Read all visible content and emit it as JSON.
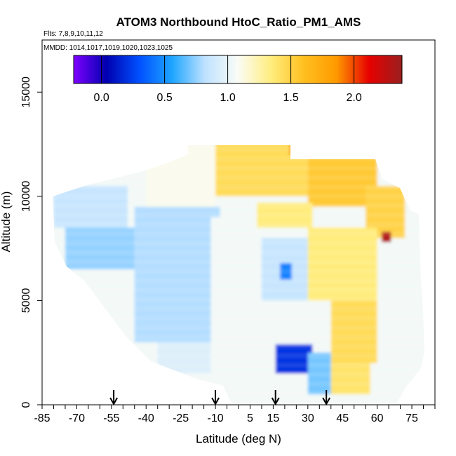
{
  "chart_data": {
    "type": "heatmap",
    "title": "ATOM3 Northbound HtoC_Ratio_PM1_AMS",
    "subtitle_flights": "Flts: 7,8,9,10,11,12",
    "subtitle_dates": "MMDD: 1014,1017,1019,1020,1023,1025",
    "xlabel": "Latitude (deg N)",
    "ylabel": "Altitude (m)",
    "xlim": [
      -85,
      85
    ],
    "ylim": [
      0,
      17500
    ],
    "x_ticks": [
      -85,
      -70,
      -55,
      -40,
      -25,
      -10,
      5,
      15,
      30,
      45,
      60,
      75
    ],
    "x_tick_labels": [
      "-85",
      "-70",
      "-55",
      "-40",
      "-25",
      "-10",
      "5",
      "15",
      "30",
      "45",
      "60",
      "75"
    ],
    "y_ticks": [
      0,
      5000,
      10000,
      15000
    ],
    "y_tick_labels": [
      "0",
      "5000",
      "10000",
      "15000"
    ],
    "colorbar": {
      "range": [
        -0.22,
        2.38
      ],
      "ticks": [
        0.0,
        0.5,
        1.0,
        1.5,
        2.0
      ],
      "tick_labels": [
        "0.0",
        "0.5",
        "1.0",
        "1.5",
        "2.0"
      ],
      "colors": [
        "#7f00ff",
        "#0000b0",
        "#0050ff",
        "#1ea5ff",
        "#bfe2ff",
        "#fafcf6",
        "#ffee80",
        "#ffc020",
        "#ff9a00",
        "#e60000",
        "#9a1f1f"
      ]
    },
    "takeoff_markers_lat": [
      -54,
      -10,
      16,
      38
    ],
    "regions": [
      {
        "lat": [
          -80,
          -48
        ],
        "alt": [
          8500,
          10500
        ],
        "value": 0.85
      },
      {
        "lat": [
          -75,
          -45
        ],
        "alt": [
          6500,
          8500
        ],
        "value": 0.75
      },
      {
        "lat": [
          -45,
          -8
        ],
        "alt": [
          3000,
          9500
        ],
        "value": 0.8
      },
      {
        "lat": [
          -35,
          -12
        ],
        "alt": [
          1500,
          3000
        ],
        "value": 0.95
      },
      {
        "lat": [
          -12,
          8
        ],
        "alt": [
          0,
          9000
        ],
        "value": 1.05
      },
      {
        "lat": [
          -40,
          -10
        ],
        "alt": [
          9500,
          12500
        ],
        "value": 1.1
      },
      {
        "lat": [
          -10,
          30
        ],
        "alt": [
          10000,
          12800
        ],
        "value": 1.45
      },
      {
        "lat": [
          22,
          36
        ],
        "alt": [
          12000,
          12800
        ],
        "value": 1.85
      },
      {
        "lat": [
          30,
          60
        ],
        "alt": [
          9500,
          12000
        ],
        "value": 1.55
      },
      {
        "lat": [
          55,
          72
        ],
        "alt": [
          8000,
          10500
        ],
        "value": 1.5
      },
      {
        "lat": [
          8,
          32
        ],
        "alt": [
          8500,
          9700
        ],
        "value": 1.35
      },
      {
        "lat": [
          10,
          30
        ],
        "alt": [
          5000,
          8000
        ],
        "value": 0.85
      },
      {
        "lat": [
          30,
          60
        ],
        "alt": [
          5000,
          8500
        ],
        "value": 1.35
      },
      {
        "lat": [
          40,
          60
        ],
        "alt": [
          2000,
          5000
        ],
        "value": 1.45
      },
      {
        "lat": [
          16,
          32
        ],
        "alt": [
          1500,
          2900
        ],
        "value": 0.2
      },
      {
        "lat": [
          30,
          40
        ],
        "alt": [
          500,
          2500
        ],
        "value": 0.7
      },
      {
        "lat": [
          40,
          57
        ],
        "alt": [
          500,
          2000
        ],
        "value": 1.4
      },
      {
        "lat": [
          62,
          66
        ],
        "alt": [
          7800,
          8300
        ],
        "value": 2.3
      },
      {
        "lat": [
          18,
          23
        ],
        "alt": [
          6000,
          6800
        ],
        "value": 0.45
      }
    ]
  }
}
